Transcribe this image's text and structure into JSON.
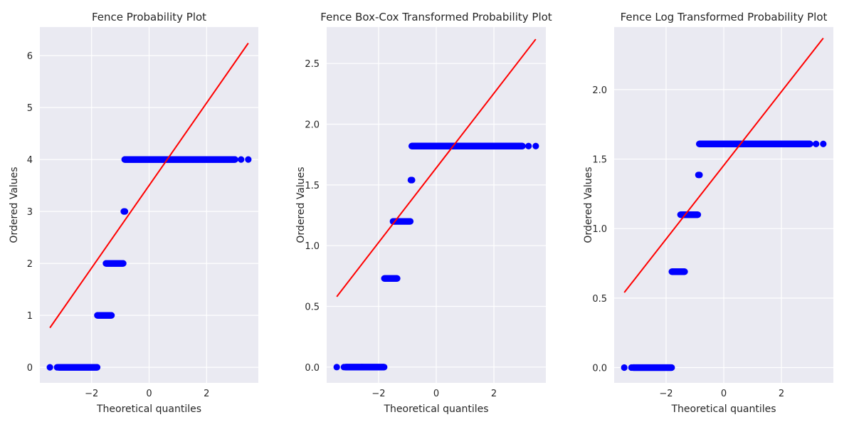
{
  "figure": {
    "background": "#ffffff",
    "axes_background": "#eaeaf2",
    "grid_color": "#ffffff",
    "point_color": "#0000ff",
    "line_color": "#ff0000"
  },
  "chart_data": [
    {
      "type": "scatter",
      "title": "Fence Probability Plot",
      "xlabel": "Theoretical quantiles",
      "ylabel": "Ordered Values",
      "xlim": [
        -3.8,
        3.8
      ],
      "ylim": [
        -0.3,
        6.55
      ],
      "xticks": [
        -2,
        0,
        2
      ],
      "xtick_labels": [
        "−2",
        "0",
        "2"
      ],
      "yticks": [
        0,
        1,
        2,
        3,
        4,
        5,
        6
      ],
      "ytick_labels": [
        "0",
        "1",
        "2",
        "3",
        "4",
        "5",
        "6"
      ],
      "grid": true,
      "levels": [
        {
          "y": 0,
          "x_points": [
            -3.45,
            -3.2
          ],
          "x_range": [
            -3.15,
            -1.8
          ]
        },
        {
          "y": 1,
          "x_range": [
            -1.8,
            -1.3
          ]
        },
        {
          "y": 2,
          "x_range": [
            -1.5,
            -0.9
          ]
        },
        {
          "y": 3,
          "x_points": [
            -0.88,
            -0.84
          ]
        },
        {
          "y": 4,
          "x_range": [
            -0.85,
            3.0
          ],
          "x_points": [
            3.2,
            3.45
          ]
        }
      ],
      "fit_line": {
        "x": [
          -3.45,
          3.45
        ],
        "y": [
          0.76,
          6.24
        ]
      }
    },
    {
      "type": "scatter",
      "title": "Fence Box-Cox Transformed Probability Plot",
      "xlabel": "Theoretical quantiles",
      "ylabel": "Ordered Values",
      "xlim": [
        -3.8,
        3.8
      ],
      "ylim": [
        -0.13,
        2.8
      ],
      "xticks": [
        -2,
        0,
        2
      ],
      "xtick_labels": [
        "−2",
        "0",
        "2"
      ],
      "yticks": [
        0.0,
        0.5,
        1.0,
        1.5,
        2.0,
        2.5
      ],
      "ytick_labels": [
        "0.0",
        "0.5",
        "1.0",
        "1.5",
        "2.0",
        "2.5"
      ],
      "grid": true,
      "levels": [
        {
          "y": 0.0,
          "x_points": [
            -3.45,
            -3.2
          ],
          "x_range": [
            -3.15,
            -1.8
          ]
        },
        {
          "y": 0.73,
          "x_range": [
            -1.8,
            -1.35
          ]
        },
        {
          "y": 1.2,
          "x_range": [
            -1.5,
            -0.9
          ]
        },
        {
          "y": 1.54,
          "x_points": [
            -0.88,
            -0.84
          ]
        },
        {
          "y": 1.82,
          "x_range": [
            -0.85,
            3.0
          ],
          "x_points": [
            3.2,
            3.45
          ]
        }
      ],
      "fit_line": {
        "x": [
          -3.45,
          3.45
        ],
        "y": [
          0.58,
          2.7
        ]
      }
    },
    {
      "type": "scatter",
      "title": "Fence Log Transformed Probability Plot",
      "xlabel": "Theoretical quantiles",
      "ylabel": "Ordered Values",
      "xlim": [
        -3.8,
        3.8
      ],
      "ylim": [
        -0.11,
        2.45
      ],
      "xticks": [
        -2,
        0,
        2
      ],
      "xtick_labels": [
        "−2",
        "0",
        "2"
      ],
      "yticks": [
        0.0,
        0.5,
        1.0,
        1.5,
        2.0
      ],
      "ytick_labels": [
        "0.0",
        "0.5",
        "1.0",
        "1.5",
        "2.0"
      ],
      "grid": true,
      "levels": [
        {
          "y": 0.0,
          "x_points": [
            -3.45,
            -3.2
          ],
          "x_range": [
            -3.15,
            -1.8
          ]
        },
        {
          "y": 0.69,
          "x_range": [
            -1.8,
            -1.35
          ]
        },
        {
          "y": 1.1,
          "x_range": [
            -1.5,
            -0.9
          ]
        },
        {
          "y": 1.386,
          "x_points": [
            -0.88,
            -0.84
          ]
        },
        {
          "y": 1.609,
          "x_range": [
            -0.85,
            3.0
          ],
          "x_points": [
            3.2,
            3.45
          ]
        }
      ],
      "fit_line": {
        "x": [
          -3.45,
          3.45
        ],
        "y": [
          0.54,
          2.37
        ]
      }
    }
  ]
}
